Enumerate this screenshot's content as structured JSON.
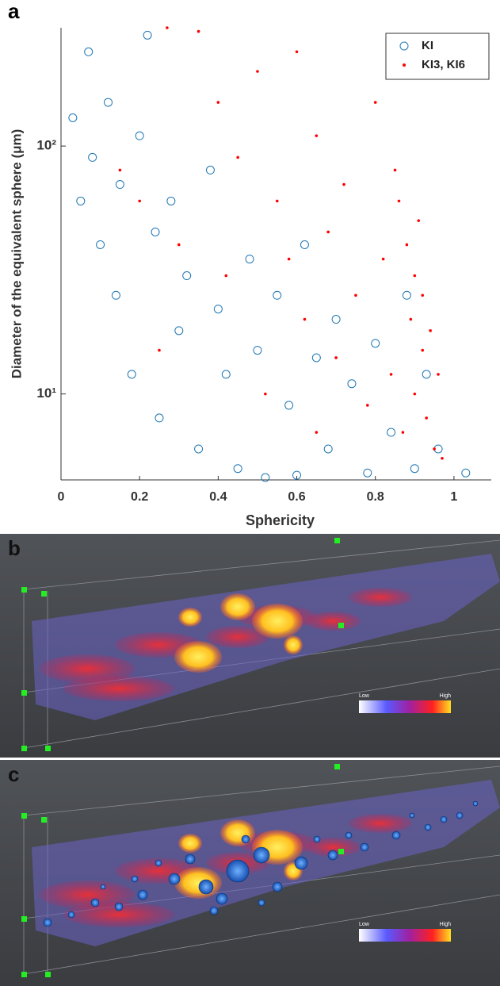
{
  "chart_data": {
    "type": "scatter",
    "panel_label": "a",
    "x_label": "Sphericity",
    "y_label": "Diameter of the equivalent sphere (μm)",
    "xlim": [
      0,
      1.095
    ],
    "xticks": [
      0,
      0.2,
      0.4,
      0.6,
      0.8,
      1
    ],
    "ylim": [
      4.5,
      300
    ],
    "yticks": [
      {
        "value": 10,
        "label": "10¹"
      },
      {
        "value": 100,
        "label": "10²"
      }
    ],
    "log_y": true,
    "legend": "upper right",
    "series": [
      {
        "name": "KI",
        "color": "#1f77b4",
        "marker": "circle",
        "x": [
          0.03,
          0.05,
          0.07,
          0.08,
          0.1,
          0.12,
          0.14,
          0.15,
          0.18,
          0.2,
          0.22,
          0.24,
          0.25,
          0.28,
          0.3,
          0.32,
          0.35,
          0.38,
          0.4,
          0.42,
          0.45,
          0.48,
          0.5,
          0.52,
          0.55,
          0.58,
          0.6,
          0.62,
          0.65,
          0.68,
          0.7,
          0.74,
          0.78,
          0.8,
          0.84,
          0.88,
          0.9,
          0.93,
          0.96,
          1.03
        ],
        "values": [
          130,
          60,
          240,
          90,
          40,
          150,
          25,
          70,
          12,
          110,
          280,
          45,
          8,
          60,
          18,
          30,
          6,
          80,
          22,
          12,
          5,
          35,
          15,
          4.6,
          25,
          9,
          4.7,
          40,
          14,
          6,
          20,
          11,
          4.8,
          16,
          7,
          25,
          5,
          12,
          6,
          4.8
        ]
      },
      {
        "name": "KI3, KI6",
        "color": "#ff0000",
        "marker": "dot",
        "x": [
          0.27,
          0.35,
          0.4,
          0.45,
          0.5,
          0.55,
          0.58,
          0.6,
          0.62,
          0.65,
          0.68,
          0.7,
          0.72,
          0.75,
          0.78,
          0.8,
          0.82,
          0.84,
          0.86,
          0.87,
          0.88,
          0.89,
          0.9,
          0.9,
          0.91,
          0.92,
          0.92,
          0.93,
          0.94,
          0.95,
          0.96,
          0.97,
          0.2,
          0.3,
          0.15,
          0.25,
          0.42,
          0.52,
          0.65,
          0.85
        ],
        "values": [
          300,
          290,
          150,
          90,
          200,
          60,
          35,
          240,
          20,
          110,
          45,
          14,
          70,
          25,
          9,
          150,
          35,
          12,
          60,
          7,
          40,
          20,
          30,
          10,
          50,
          15,
          25,
          8,
          18,
          6,
          12,
          5.5,
          60,
          40,
          80,
          15,
          30,
          10,
          7,
          80
        ]
      }
    ]
  },
  "renderings": [
    {
      "label": "b",
      "colorbar_low": "Low",
      "colorbar_high": "High"
    },
    {
      "label": "c",
      "colorbar_low": "Low",
      "colorbar_high": "High"
    }
  ]
}
